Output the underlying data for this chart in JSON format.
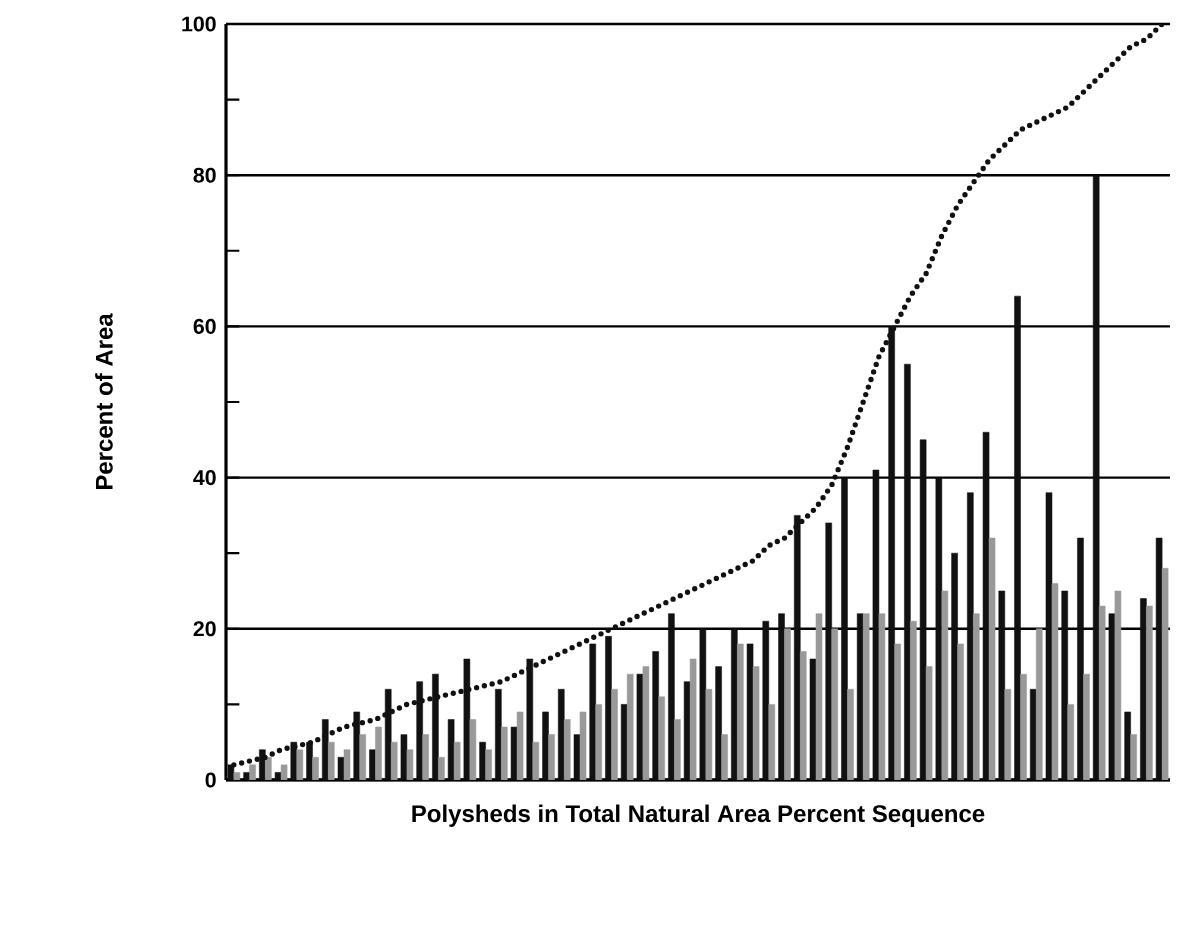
{
  "chart_data": {
    "type": "bar",
    "xlabel": "Polysheds in Total Natural Area Percent Sequence",
    "ylabel": "Percent of Area",
    "categories": [
      null,
      null,
      null,
      null,
      null,
      null,
      null,
      null,
      null,
      null,
      null,
      null,
      null,
      null,
      null,
      null,
      null,
      null,
      null,
      null,
      null,
      null,
      null,
      null,
      null,
      null,
      null,
      null,
      null,
      null,
      null,
      null,
      null,
      null,
      null,
      null,
      null,
      null,
      null,
      null,
      null,
      null,
      null,
      null,
      null,
      null,
      null,
      null,
      null,
      null,
      null,
      null,
      null,
      null,
      null,
      null,
      null,
      null,
      null,
      null
    ],
    "series": [
      {
        "color": "#111111",
        "values": [
          2,
          1,
          4,
          1,
          5,
          5,
          8,
          3,
          9,
          4,
          12,
          6,
          13,
          14,
          8,
          16,
          5,
          12,
          7,
          16,
          9,
          12,
          6,
          18,
          19,
          10,
          14,
          17,
          22,
          13,
          20,
          15,
          20,
          18,
          21,
          22,
          35,
          16,
          34,
          40,
          22,
          41,
          60,
          55,
          45,
          40,
          30,
          38,
          46,
          25,
          64,
          12,
          38,
          25,
          32,
          80,
          22,
          9,
          24,
          32
        ]
      },
      {
        "color": "#999999",
        "values": [
          1,
          2,
          3,
          2,
          4,
          3,
          5,
          4,
          6,
          7,
          5,
          4,
          6,
          3,
          5,
          8,
          4,
          7,
          9,
          5,
          6,
          8,
          9,
          10,
          12,
          14,
          15,
          11,
          8,
          16,
          12,
          6,
          18,
          15,
          10,
          20,
          17,
          22,
          20,
          12,
          22,
          22,
          18,
          21,
          15,
          25,
          18,
          22,
          32,
          12,
          14,
          20,
          26,
          10,
          14,
          23,
          25,
          6,
          23,
          28
        ]
      },
      {
        "type": "line",
        "color": "#111111",
        "line_style": "dotted",
        "values": [
          2,
          2.5,
          3,
          4,
          4.5,
          5,
          6,
          7,
          7.5,
          8,
          9,
          10,
          10.5,
          11,
          11.5,
          12,
          12.5,
          13,
          14,
          15,
          16,
          17,
          18,
          19,
          20,
          21,
          22,
          23,
          24,
          25,
          26,
          27,
          28,
          29,
          31,
          32,
          34,
          36,
          39,
          44,
          50,
          56,
          60,
          64,
          67,
          72,
          76,
          79,
          82,
          84,
          86,
          87,
          88,
          89,
          91,
          93,
          95,
          97,
          98,
          100
        ]
      }
    ],
    "ylim": [
      0,
      100
    ],
    "yticks": [
      0,
      {
        "value": 10,
        "label": null
      },
      20,
      {
        "value": 30,
        "label": null
      },
      40,
      {
        "value": 50,
        "label": null
      },
      60,
      {
        "value": 70,
        "label": null
      },
      80,
      {
        "value": 90,
        "label": null
      },
      100
    ],
    "grid": "y"
  }
}
